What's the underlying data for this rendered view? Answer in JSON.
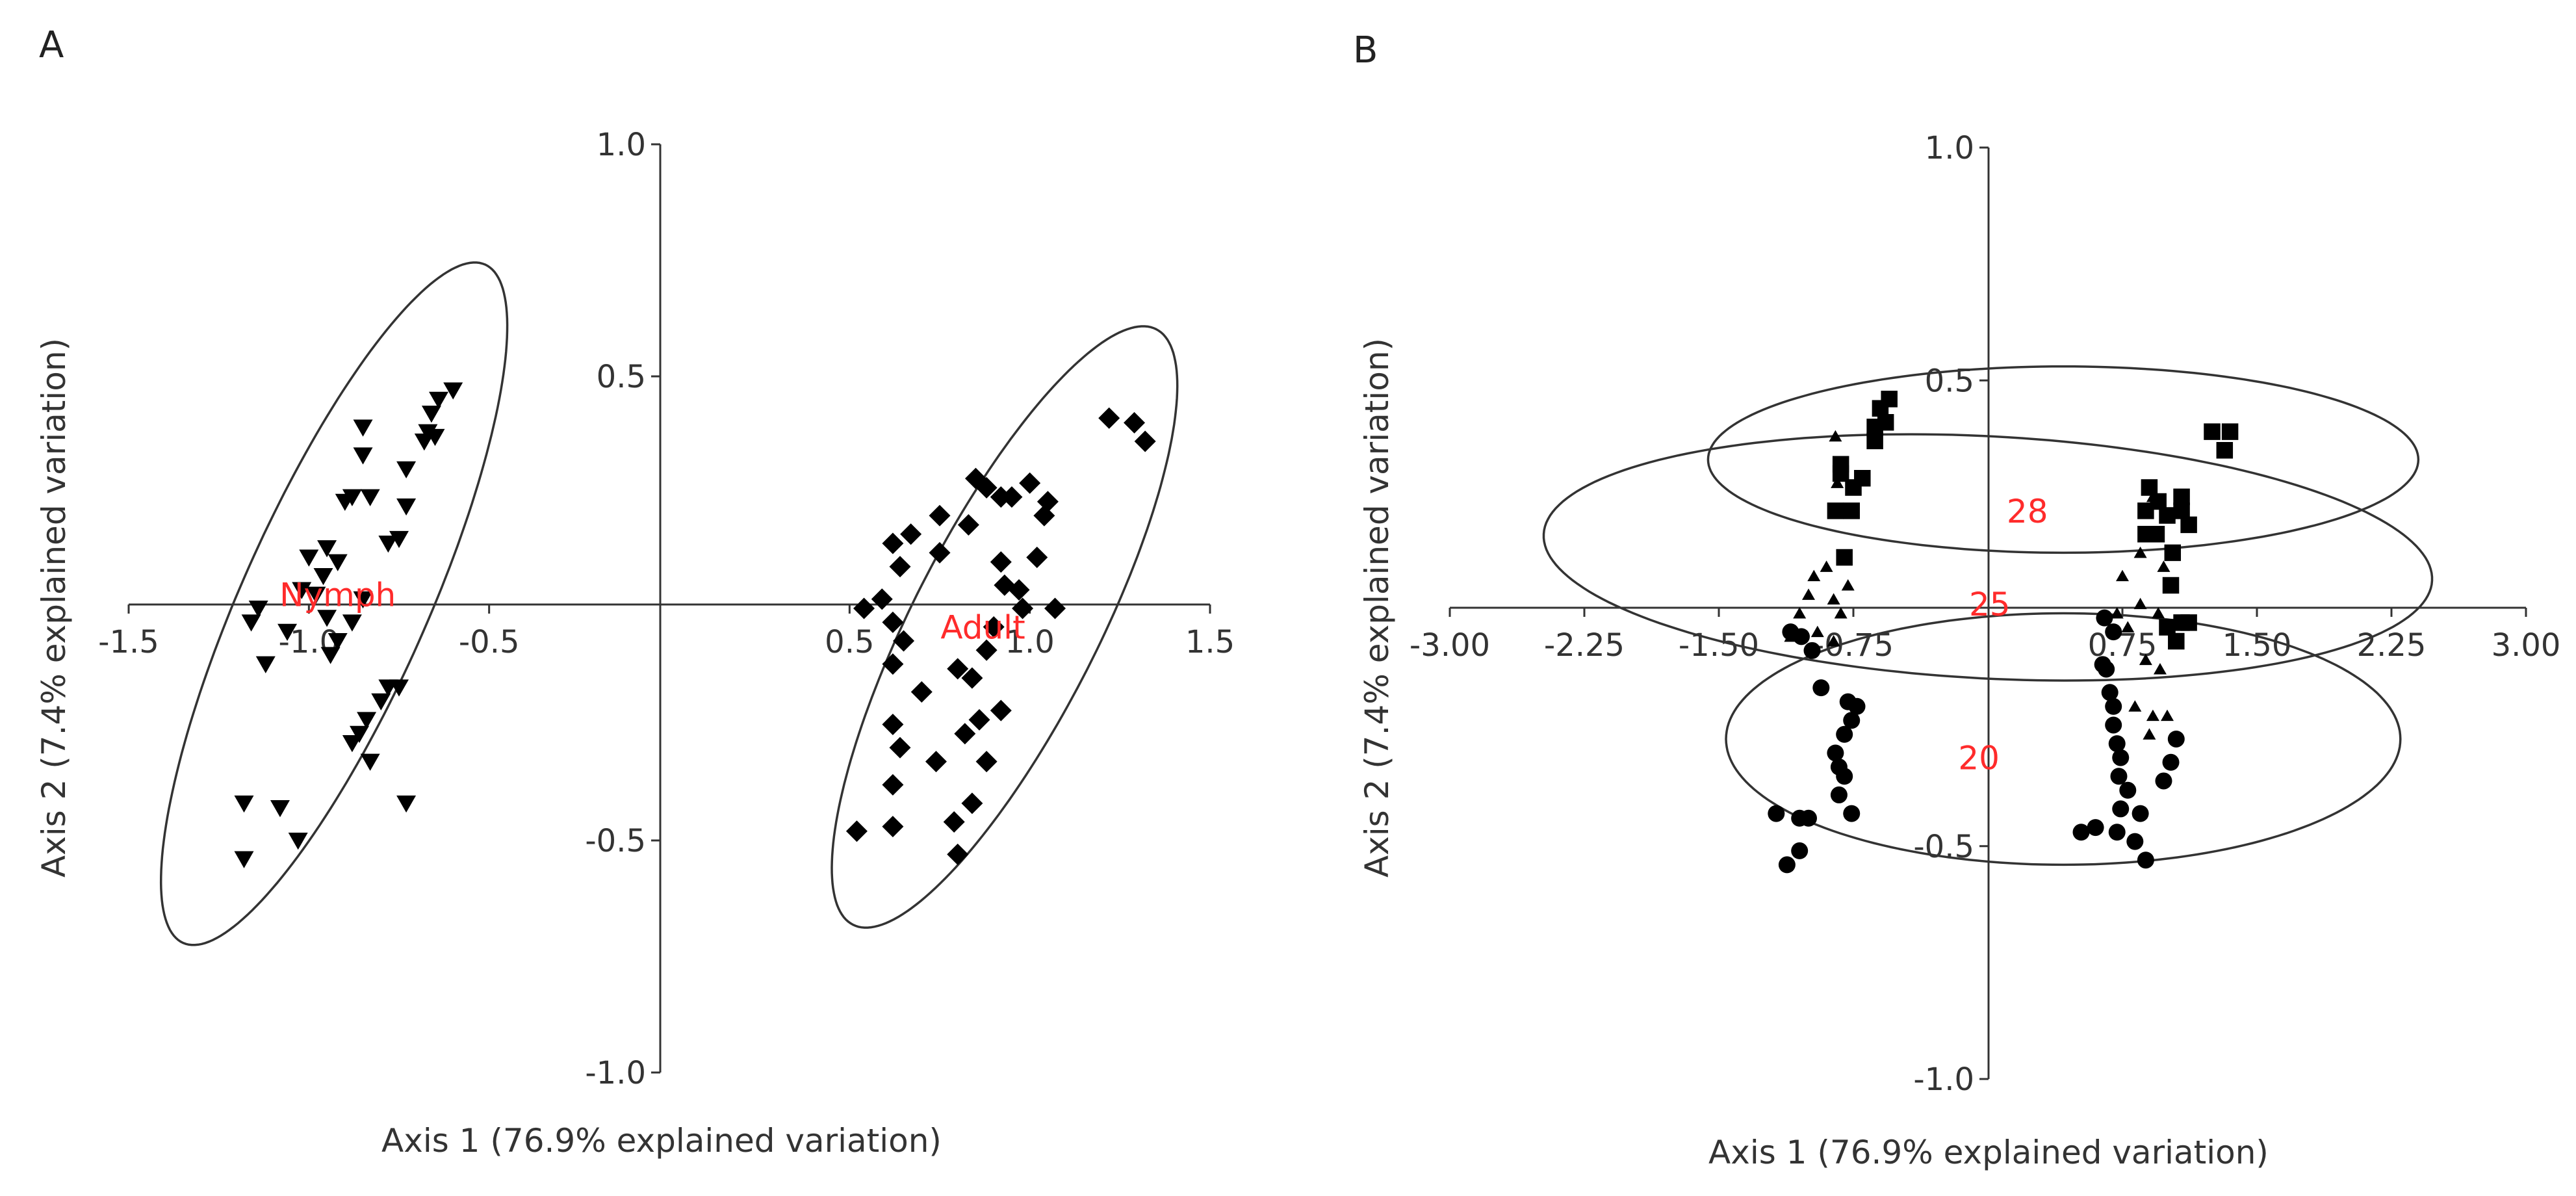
{
  "chart_data": [
    {
      "type": "scatter",
      "panel_label": "A",
      "xlabel": "Axis 1 (76.9% explained variation)",
      "ylabel": "Axis 2 (7.4% explained variation)",
      "xlim": [
        -1.5,
        1.5
      ],
      "ylim": [
        -1.0,
        1.0
      ],
      "x_ticks": [
        -1.5,
        -1.0,
        -0.5,
        0.5,
        1.0,
        1.5
      ],
      "x_tick_labels": [
        "-1.5",
        "-1.0",
        "-0.5",
        "0.5",
        "1.0",
        "1.5"
      ],
      "y_ticks": [
        1.0,
        0.5,
        -0.5,
        -1.0
      ],
      "y_tick_labels": [
        "1.0",
        "0.5",
        "-0.5",
        "-1.0"
      ],
      "label_color": "#ff2b2b",
      "series": [
        {
          "name": "Nymph",
          "marker": "triangle-down",
          "label_at": [
            -0.92,
            0.03
          ],
          "ellipse": {
            "cx": -0.93,
            "cy": 0.01,
            "a": 0.8,
            "b": 0.2,
            "angle_deg": 66
          },
          "points": [
            [
              -0.6,
              0.47
            ],
            [
              -0.64,
              0.45
            ],
            [
              -0.66,
              0.42
            ],
            [
              -0.67,
              0.38
            ],
            [
              -0.68,
              0.36
            ],
            [
              -0.65,
              0.37
            ],
            [
              -0.85,
              0.39
            ],
            [
              -0.85,
              0.33
            ],
            [
              -0.73,
              0.3
            ],
            [
              -0.88,
              0.24
            ],
            [
              -0.83,
              0.24
            ],
            [
              -0.9,
              0.23
            ],
            [
              -0.73,
              0.22
            ],
            [
              -0.75,
              0.15
            ],
            [
              -0.78,
              0.14
            ],
            [
              -0.95,
              0.13
            ],
            [
              -1.0,
              0.11
            ],
            [
              -0.92,
              0.1
            ],
            [
              -0.96,
              0.07
            ],
            [
              -1.02,
              0.04
            ],
            [
              -0.98,
              0.03
            ],
            [
              -0.85,
              0.02
            ],
            [
              -1.14,
              0.0
            ],
            [
              -1.16,
              -0.03
            ],
            [
              -0.95,
              -0.02
            ],
            [
              -0.88,
              -0.03
            ],
            [
              -0.92,
              -0.07
            ],
            [
              -0.94,
              -0.1
            ],
            [
              -1.06,
              -0.05
            ],
            [
              -1.12,
              -0.12
            ],
            [
              -0.75,
              -0.17
            ],
            [
              -0.78,
              -0.17
            ],
            [
              -0.8,
              -0.2
            ],
            [
              -0.84,
              -0.24
            ],
            [
              -0.86,
              -0.27
            ],
            [
              -0.88,
              -0.29
            ],
            [
              -0.83,
              -0.33
            ],
            [
              -0.73,
              -0.42
            ],
            [
              -1.18,
              -0.42
            ],
            [
              -1.08,
              -0.43
            ],
            [
              -1.03,
              -0.5
            ],
            [
              -1.18,
              -0.54
            ]
          ]
        },
        {
          "name": "Adult",
          "marker": "diamond",
          "label_at": [
            0.87,
            -0.04
          ],
          "ellipse": {
            "cx": 0.93,
            "cy": -0.04,
            "a": 0.72,
            "b": 0.2,
            "angle_deg": 63
          },
          "points": [
            [
              1.22,
              0.41
            ],
            [
              1.29,
              0.4
            ],
            [
              1.32,
              0.36
            ],
            [
              0.85,
              0.28
            ],
            [
              0.88,
              0.26
            ],
            [
              1.0,
              0.27
            ],
            [
              0.92,
              0.24
            ],
            [
              0.95,
              0.24
            ],
            [
              1.05,
              0.23
            ],
            [
              0.75,
              0.2
            ],
            [
              0.83,
              0.18
            ],
            [
              1.04,
              0.2
            ],
            [
              0.67,
              0.16
            ],
            [
              0.75,
              0.12
            ],
            [
              0.62,
              0.14
            ],
            [
              0.64,
              0.09
            ],
            [
              0.92,
              0.1
            ],
            [
              1.02,
              0.11
            ],
            [
              0.59,
              0.02
            ],
            [
              0.54,
              0.0
            ],
            [
              0.93,
              0.05
            ],
            [
              0.97,
              0.04
            ],
            [
              0.98,
              0.0
            ],
            [
              0.62,
              -0.03
            ],
            [
              1.07,
              0.0
            ],
            [
              0.9,
              -0.04
            ],
            [
              0.88,
              -0.09
            ],
            [
              0.65,
              -0.07
            ],
            [
              0.62,
              -0.12
            ],
            [
              0.84,
              -0.15
            ],
            [
              0.8,
              -0.13
            ],
            [
              0.7,
              -0.18
            ],
            [
              0.62,
              -0.25
            ],
            [
              0.86,
              -0.24
            ],
            [
              0.82,
              -0.27
            ],
            [
              0.74,
              -0.33
            ],
            [
              0.64,
              -0.3
            ],
            [
              0.62,
              -0.38
            ],
            [
              0.92,
              -0.22
            ],
            [
              0.88,
              -0.33
            ],
            [
              0.84,
              -0.42
            ],
            [
              0.79,
              -0.46
            ],
            [
              0.62,
              -0.47
            ],
            [
              0.52,
              -0.48
            ],
            [
              0.8,
              -0.53
            ]
          ]
        }
      ]
    },
    {
      "type": "scatter",
      "panel_label": "B",
      "xlabel": "Axis 1 (76.9% explained variation)",
      "ylabel": "Axis 2 (7.4% explained variation)",
      "xlim": [
        -3.0,
        3.0
      ],
      "ylim": [
        -1.0,
        1.0
      ],
      "x_ticks": [
        -3.0,
        -2.25,
        -1.5,
        -0.75,
        0.75,
        1.5,
        2.25,
        3.0
      ],
      "x_tick_labels": [
        "-3.00",
        "-2.25",
        "-1.50",
        "-0.75",
        "0.75",
        "1.50",
        "2.25",
        "3.00"
      ],
      "y_ticks": [
        1.0,
        0.5,
        -0.5,
        -1.0
      ],
      "y_tick_labels": [
        "1.0",
        "0.5",
        "-0.5",
        "-1.0"
      ],
      "label_color": "#ff2b2b",
      "series": [
        {
          "name": "28",
          "marker": "square",
          "label_at": [
            0.22,
            0.22
          ],
          "ellipse": {
            "cx": 0.42,
            "cy": 0.33,
            "a": 1.98,
            "b": 0.2,
            "angle_deg": 0
          },
          "points": [
            [
              -0.55,
              0.46
            ],
            [
              -0.6,
              0.44
            ],
            [
              -0.57,
              0.41
            ],
            [
              -0.63,
              0.4
            ],
            [
              -0.63,
              0.37
            ],
            [
              -0.82,
              0.32
            ],
            [
              -0.82,
              0.3
            ],
            [
              -0.7,
              0.29
            ],
            [
              -0.75,
              0.27
            ],
            [
              -0.85,
              0.22
            ],
            [
              -0.76,
              0.22
            ],
            [
              -0.8,
              0.12
            ],
            [
              1.25,
              0.39
            ],
            [
              1.35,
              0.39
            ],
            [
              1.32,
              0.35
            ],
            [
              0.9,
              0.27
            ],
            [
              0.95,
              0.24
            ],
            [
              1.08,
              0.25
            ],
            [
              1.08,
              0.22
            ],
            [
              0.88,
              0.22
            ],
            [
              1.0,
              0.21
            ],
            [
              0.94,
              0.17
            ],
            [
              0.88,
              0.17
            ],
            [
              1.12,
              0.19
            ],
            [
              1.03,
              0.13
            ],
            [
              1.02,
              0.06
            ],
            [
              1.08,
              -0.02
            ],
            [
              1.0,
              -0.03
            ],
            [
              1.12,
              -0.02
            ],
            [
              1.05,
              -0.06
            ]
          ]
        },
        {
          "name": "25",
          "marker": "triangle-up",
          "label_at": [
            0.01,
            0.02
          ],
          "ellipse": {
            "cx": 0.0,
            "cy": 0.12,
            "a": 2.48,
            "b": 0.26,
            "angle_deg": -3
          },
          "points": [
            [
              -0.85,
              0.38
            ],
            [
              -0.84,
              0.28
            ],
            [
              -0.9,
              0.1
            ],
            [
              -0.97,
              0.08
            ],
            [
              -0.78,
              0.06
            ],
            [
              -1.0,
              0.04
            ],
            [
              -0.86,
              0.03
            ],
            [
              -1.05,
              0.0
            ],
            [
              -0.82,
              0.0
            ],
            [
              -1.1,
              -0.05
            ],
            [
              -0.95,
              -0.04
            ],
            [
              -0.86,
              -0.06
            ],
            [
              0.92,
              0.25
            ],
            [
              0.85,
              0.13
            ],
            [
              0.75,
              0.08
            ],
            [
              0.98,
              0.1
            ],
            [
              0.85,
              0.02
            ],
            [
              0.72,
              0.0
            ],
            [
              0.95,
              0.0
            ],
            [
              0.78,
              -0.03
            ],
            [
              0.88,
              -0.1
            ],
            [
              0.96,
              -0.12
            ],
            [
              0.82,
              -0.2
            ],
            [
              0.92,
              -0.22
            ],
            [
              1.0,
              -0.22
            ],
            [
              0.9,
              -0.26
            ]
          ]
        },
        {
          "name": "20",
          "marker": "circle",
          "label_at": [
            -0.05,
            -0.31
          ],
          "ellipse": {
            "cx": 0.42,
            "cy": -0.27,
            "a": 1.88,
            "b": 0.27,
            "angle_deg": 0
          },
          "points": [
            [
              -1.1,
              -0.04
            ],
            [
              -1.04,
              -0.05
            ],
            [
              -0.98,
              -0.08
            ],
            [
              -0.93,
              -0.16
            ],
            [
              -0.78,
              -0.19
            ],
            [
              -0.73,
              -0.2
            ],
            [
              -0.76,
              -0.23
            ],
            [
              -0.8,
              -0.26
            ],
            [
              -0.85,
              -0.3
            ],
            [
              -0.83,
              -0.33
            ],
            [
              -0.8,
              -0.35
            ],
            [
              -0.83,
              -0.39
            ],
            [
              -1.0,
              -0.44
            ],
            [
              -1.05,
              -0.44
            ],
            [
              -0.76,
              -0.43
            ],
            [
              -1.05,
              -0.51
            ],
            [
              -1.12,
              -0.54
            ],
            [
              -1.18,
              -0.43
            ],
            [
              0.65,
              -0.01
            ],
            [
              0.7,
              -0.04
            ],
            [
              0.64,
              -0.11
            ],
            [
              0.66,
              -0.12
            ],
            [
              0.68,
              -0.17
            ],
            [
              0.7,
              -0.2
            ],
            [
              0.7,
              -0.24
            ],
            [
              0.72,
              -0.28
            ],
            [
              0.74,
              -0.31
            ],
            [
              0.73,
              -0.35
            ],
            [
              0.78,
              -0.38
            ],
            [
              0.74,
              -0.42
            ],
            [
              0.6,
              -0.46
            ],
            [
              0.52,
              -0.47
            ],
            [
              0.72,
              -0.47
            ],
            [
              0.85,
              -0.43
            ],
            [
              0.82,
              -0.49
            ],
            [
              0.88,
              -0.53
            ],
            [
              1.02,
              -0.32
            ],
            [
              1.05,
              -0.27
            ],
            [
              0.98,
              -0.36
            ]
          ]
        }
      ]
    }
  ]
}
